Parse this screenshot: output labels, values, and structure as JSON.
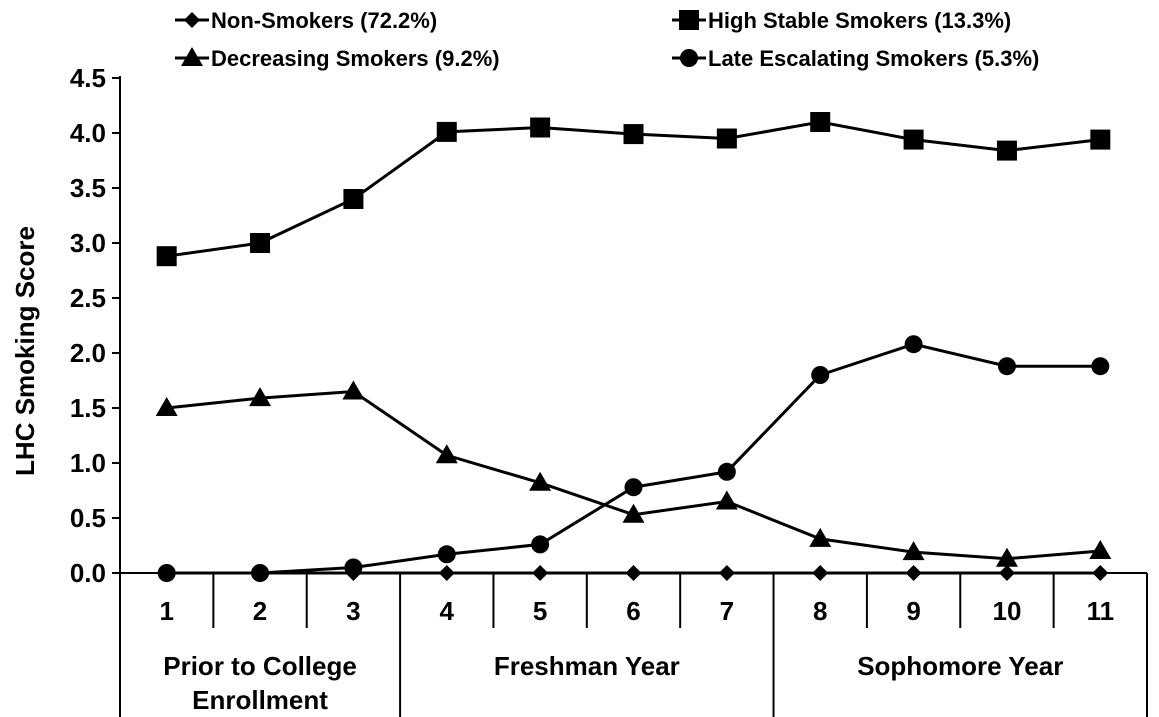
{
  "chart_data": {
    "type": "line",
    "ylabel": "LHC Smoking Score",
    "ylim": [
      0,
      4.5
    ],
    "yticks": [
      "0.0",
      "0.5",
      "1.0",
      "1.5",
      "2.0",
      "2.5",
      "3.0",
      "3.5",
      "4.0",
      "4.5"
    ],
    "x": [
      "1",
      "2",
      "3",
      "4",
      "5",
      "6",
      "7",
      "8",
      "9",
      "10",
      "11"
    ],
    "groups": [
      {
        "label_lines": [
          "Prior to College",
          "Enrollment"
        ],
        "from": "1",
        "to": "3"
      },
      {
        "label_lines": [
          "Freshman Year"
        ],
        "from": "4",
        "to": "7"
      },
      {
        "label_lines": [
          "Sophomore Year"
        ],
        "from": "8",
        "to": "11"
      }
    ],
    "grid": false,
    "legend_position": "top",
    "series": [
      {
        "name": "Non-Smokers (72.2%)",
        "marker": "diamond",
        "values": [
          0,
          0,
          0,
          0,
          0,
          0,
          0,
          0,
          0,
          0,
          0
        ]
      },
      {
        "name": "High Stable Smokers (13.3%)",
        "marker": "square",
        "values": [
          2.88,
          3.0,
          3.4,
          4.01,
          4.05,
          3.99,
          3.95,
          4.1,
          3.94,
          3.84,
          3.94
        ]
      },
      {
        "name": "Decreasing Smokers (9.2%)",
        "marker": "triangle",
        "values": [
          1.5,
          1.59,
          1.65,
          1.07,
          0.82,
          0.53,
          0.65,
          0.31,
          0.19,
          0.13,
          0.2
        ]
      },
      {
        "name": "Late Escalating Smokers (5.3%)",
        "marker": "circle",
        "values": [
          0,
          0,
          0.05,
          0.17,
          0.26,
          0.78,
          0.92,
          1.8,
          2.08,
          1.88,
          1.88
        ]
      }
    ]
  }
}
